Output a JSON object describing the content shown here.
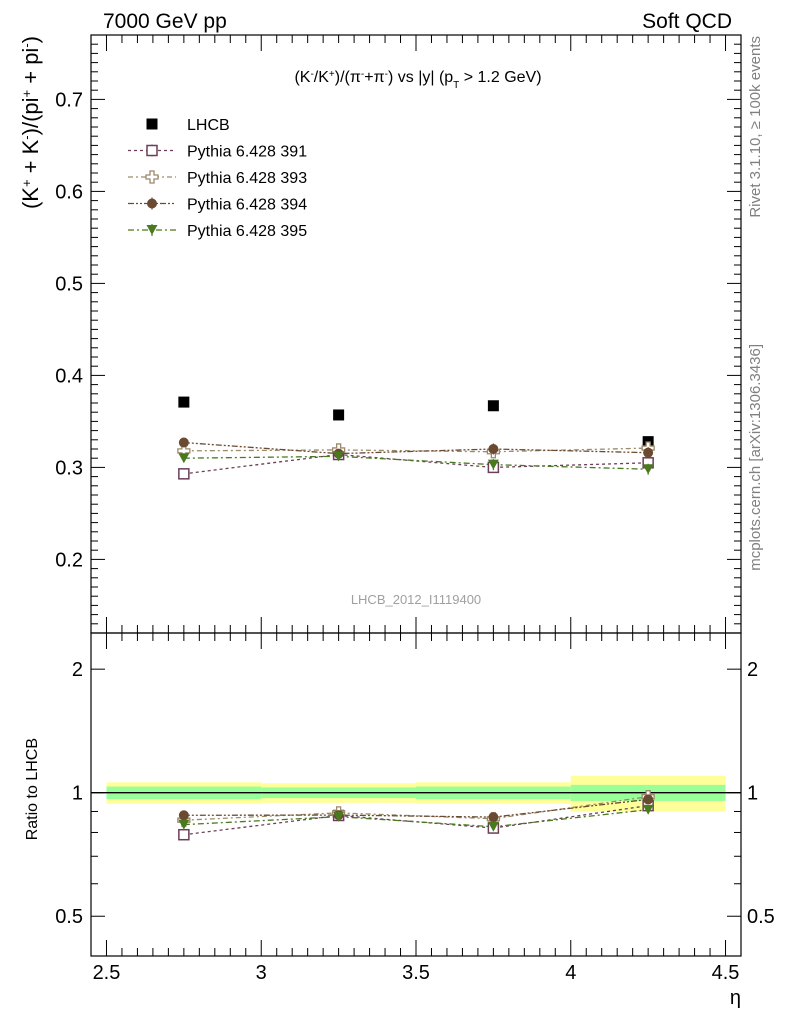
{
  "header": {
    "left": "7000 GeV pp",
    "right": "Soft QCD"
  },
  "side_labels": {
    "rivet": "Rivet 3.1.10, ≥ 100k events",
    "mcplots": "mcplots.cern.ch [arXiv:1306.3436]"
  },
  "main": {
    "title": "(K⁻/K⁺)/(π⁺+π⁻) vs |y| (p_T > 1.2 GeV)",
    "watermark": "LHCB_2012_I1119400",
    "ylabel": "(K⁺ + K⁻)/(pi⁺ + pi⁻)"
  },
  "ratio": {
    "ylabel": "Ratio to LHCB"
  },
  "xaxis_label": "η",
  "chart_data": [
    {
      "type": "scatter",
      "panel": "main",
      "xlim": [
        2.45,
        4.55
      ],
      "ylim": [
        0.12,
        0.77
      ],
      "yticks": [
        0.2,
        0.3,
        0.4,
        0.5,
        0.6,
        0.7
      ],
      "ytick_labels": [
        "0.2",
        "0.3",
        "0.4",
        "0.5",
        "0.6",
        "0.7"
      ],
      "x": [
        2.75,
        3.25,
        3.75,
        4.25
      ],
      "series": [
        {
          "name": "LHCB",
          "marker": "filled-square",
          "color": "#000000",
          "values": [
            0.371,
            0.357,
            0.367,
            0.328
          ]
        },
        {
          "name": "Pythia 6.428 391",
          "marker": "open-square",
          "color": "#6b3e5a",
          "values": [
            0.293,
            0.314,
            0.3,
            0.305
          ],
          "errors": [
            0.004,
            0.004,
            0.006,
            0.006
          ]
        },
        {
          "name": "Pythia 6.428 393",
          "marker": "open-cross",
          "color": "#9a8a6a",
          "values": [
            0.318,
            0.319,
            0.317,
            0.321
          ],
          "errors": [
            0.004,
            0.004,
            0.006,
            0.006
          ]
        },
        {
          "name": "Pythia 6.428 394",
          "marker": "filled-circle",
          "color": "#6b4a32",
          "values": [
            0.327,
            0.315,
            0.32,
            0.316
          ],
          "errors": [
            0.004,
            0.004,
            0.006,
            0.006
          ]
        },
        {
          "name": "Pythia 6.428 395",
          "marker": "filled-triangle-down",
          "color": "#4a7a1e",
          "values": [
            0.31,
            0.312,
            0.303,
            0.298
          ],
          "errors": [
            0.004,
            0.004,
            0.006,
            0.006
          ]
        }
      ]
    },
    {
      "type": "scatter",
      "panel": "ratio",
      "xlim": [
        2.45,
        4.55
      ],
      "ylim": [
        0.4,
        2.45
      ],
      "log_y": true,
      "yticks": [
        0.5,
        1,
        2
      ],
      "ytick_labels": [
        "0.5",
        "1",
        "2"
      ],
      "xticks": [
        2.5,
        3,
        3.5,
        4,
        4.5
      ],
      "xtick_labels": [
        "2.5",
        "3",
        "3.5",
        "4",
        "4.5"
      ],
      "x": [
        2.75,
        3.25,
        3.75,
        4.25
      ],
      "bins": [
        [
          2.5,
          3.0
        ],
        [
          3.0,
          3.5
        ],
        [
          3.5,
          4.0
        ],
        [
          4.0,
          4.5
        ]
      ],
      "band_yellow": [
        [
          0.94,
          1.06
        ],
        [
          0.945,
          1.055
        ],
        [
          0.94,
          1.06
        ],
        [
          0.9,
          1.1
        ]
      ],
      "band_green": [
        [
          0.965,
          1.035
        ],
        [
          0.97,
          1.03
        ],
        [
          0.965,
          1.035
        ],
        [
          0.955,
          1.045
        ]
      ],
      "series": [
        {
          "name": "Pythia 6.428 391",
          "marker": "open-square",
          "color": "#6b3e5a",
          "values": [
            0.79,
            0.88,
            0.82,
            0.93
          ]
        },
        {
          "name": "Pythia 6.428 393",
          "marker": "open-cross",
          "color": "#9a8a6a",
          "values": [
            0.857,
            0.893,
            0.864,
            0.978
          ]
        },
        {
          "name": "Pythia 6.428 394",
          "marker": "filled-circle",
          "color": "#6b4a32",
          "values": [
            0.881,
            0.882,
            0.872,
            0.963
          ]
        },
        {
          "name": "Pythia 6.428 395",
          "marker": "filled-triangle-down",
          "color": "#4a7a1e",
          "values": [
            0.836,
            0.874,
            0.826,
            0.909
          ]
        }
      ]
    }
  ],
  "colors": {
    "band_yellow": "#ffff99",
    "band_green": "#99ff99"
  }
}
